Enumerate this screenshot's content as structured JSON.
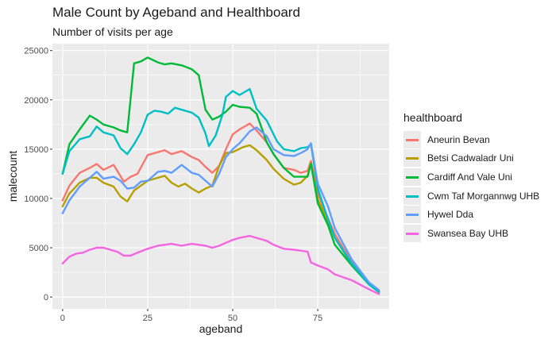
{
  "chart_data": {
    "type": "line",
    "title": "Male Count by Ageband and Healthboard",
    "subtitle": "Number of visits per age",
    "xlabel": "ageband",
    "ylabel": "malecount",
    "xlim": [
      -3,
      96
    ],
    "ylim": [
      -1200,
      25700
    ],
    "xticks": [
      0,
      25,
      50,
      75
    ],
    "yticks": [
      0,
      5000,
      10000,
      15000,
      20000,
      25000
    ],
    "legend_title": "healthboard",
    "legend_position": "right",
    "grid": true,
    "series": [
      {
        "name": "Aneurin Bevan",
        "color": "#F8766D",
        "x": [
          0,
          2,
          5,
          8,
          10,
          12,
          15,
          18,
          20,
          22,
          25,
          28,
          30,
          32,
          35,
          38,
          40,
          42,
          44,
          46,
          48,
          50,
          52,
          55,
          57,
          60,
          62,
          65,
          68,
          70,
          72,
          73,
          75,
          78,
          80,
          85,
          90,
          93
        ],
        "y": [
          9800,
          11300,
          12600,
          13100,
          13500,
          12900,
          13400,
          11700,
          12200,
          12500,
          14400,
          14700,
          14900,
          14500,
          14800,
          14200,
          13900,
          13200,
          12600,
          13300,
          15000,
          16500,
          17000,
          17600,
          16900,
          15700,
          14500,
          13100,
          12900,
          12600,
          12800,
          13800,
          10500,
          8000,
          6400,
          3500,
          1400,
          600
        ]
      },
      {
        "name": "Betsi Cadwaladr Uni",
        "color": "#B79F00",
        "x": [
          0,
          2,
          5,
          8,
          10,
          12,
          15,
          17,
          19,
          21,
          23,
          25,
          28,
          30,
          32,
          34,
          36,
          38,
          40,
          42,
          44,
          46,
          48,
          50,
          53,
          55,
          57,
          60,
          62,
          65,
          68,
          70,
          72,
          73,
          75,
          78,
          80,
          85,
          90,
          93
        ],
        "y": [
          9200,
          10500,
          11600,
          12100,
          12100,
          11600,
          11200,
          10200,
          9700,
          10800,
          11300,
          11800,
          12100,
          12300,
          11600,
          11200,
          11500,
          11000,
          10600,
          11000,
          11300,
          13300,
          14600,
          14700,
          15200,
          15400,
          14900,
          13900,
          13000,
          12000,
          11400,
          11600,
          12300,
          13600,
          9900,
          7700,
          6000,
          3300,
          1300,
          500
        ]
      },
      {
        "name": "Cardiff And Vale Uni",
        "color": "#00BA38",
        "x": [
          0,
          2,
          5,
          8,
          10,
          12,
          15,
          17,
          19,
          21,
          23,
          25,
          28,
          30,
          32,
          35,
          38,
          40,
          42,
          44,
          46,
          48,
          50,
          52,
          55,
          57,
          60,
          62,
          65,
          68,
          70,
          72,
          73,
          75,
          78,
          80,
          85,
          90,
          93
        ],
        "y": [
          12500,
          15500,
          17000,
          18400,
          18000,
          17500,
          17200,
          16900,
          16700,
          23700,
          23900,
          24300,
          23800,
          23600,
          23700,
          23500,
          23100,
          22500,
          19000,
          18000,
          18300,
          18800,
          19500,
          19300,
          19200,
          18600,
          15700,
          14500,
          13100,
          12200,
          12200,
          12200,
          13500,
          9500,
          7300,
          5300,
          3200,
          1300,
          500
        ]
      },
      {
        "name": "Cwm Taf Morgannwg UHB",
        "color": "#00BFC4",
        "x": [
          0,
          2,
          5,
          8,
          10,
          12,
          15,
          17,
          19,
          21,
          23,
          25,
          27,
          29,
          31,
          33,
          35,
          38,
          40,
          42,
          43,
          45,
          47,
          48,
          50,
          52,
          55,
          57,
          60,
          63,
          65,
          68,
          70,
          72,
          73,
          75,
          78,
          80,
          85,
          90,
          93
        ],
        "y": [
          12500,
          14800,
          16000,
          16300,
          17300,
          16700,
          16400,
          15100,
          14500,
          15500,
          16700,
          18500,
          18900,
          18800,
          18600,
          19200,
          19000,
          18700,
          18200,
          16600,
          15300,
          16400,
          18500,
          20300,
          20900,
          20500,
          21100,
          19100,
          17900,
          15800,
          15000,
          14800,
          15100,
          15200,
          15500,
          11000,
          7900,
          6000,
          3400,
          1300,
          500
        ]
      },
      {
        "name": "Hywel Dda",
        "color": "#619CFF",
        "x": [
          0,
          2,
          5,
          8,
          10,
          12,
          15,
          17,
          19,
          21,
          23,
          25,
          28,
          30,
          32,
          35,
          38,
          40,
          42,
          44,
          46,
          48,
          50,
          52,
          55,
          57,
          60,
          62,
          65,
          68,
          70,
          72,
          73,
          75,
          78,
          80,
          85,
          90,
          93
        ],
        "y": [
          8500,
          9800,
          11200,
          12100,
          12700,
          12000,
          12200,
          11800,
          11000,
          11100,
          11700,
          11800,
          12700,
          12800,
          12600,
          13400,
          12600,
          12400,
          11800,
          11200,
          12500,
          14200,
          15000,
          15600,
          16800,
          17200,
          16300,
          15000,
          14400,
          14300,
          14600,
          15000,
          15600,
          11500,
          9200,
          7000,
          3800,
          1500,
          700
        ]
      },
      {
        "name": "Swansea Bay UHB",
        "color": "#F564E3",
        "x": [
          0,
          2,
          4,
          6,
          8,
          10,
          12,
          14,
          16,
          18,
          20,
          22,
          25,
          28,
          30,
          32,
          35,
          38,
          40,
          42,
          44,
          46,
          48,
          50,
          52,
          55,
          57,
          60,
          62,
          65,
          68,
          70,
          72,
          73,
          75,
          78,
          80,
          85,
          90,
          93
        ],
        "y": [
          3400,
          4100,
          4400,
          4500,
          4800,
          5000,
          5000,
          4800,
          4600,
          4200,
          4200,
          4500,
          4900,
          5200,
          5300,
          5400,
          5200,
          5400,
          5300,
          5200,
          5000,
          5200,
          5500,
          5800,
          6000,
          6200,
          6000,
          5700,
          5300,
          4900,
          4800,
          4700,
          4600,
          3500,
          3200,
          2800,
          2300,
          1700,
          800,
          300
        ]
      }
    ]
  }
}
